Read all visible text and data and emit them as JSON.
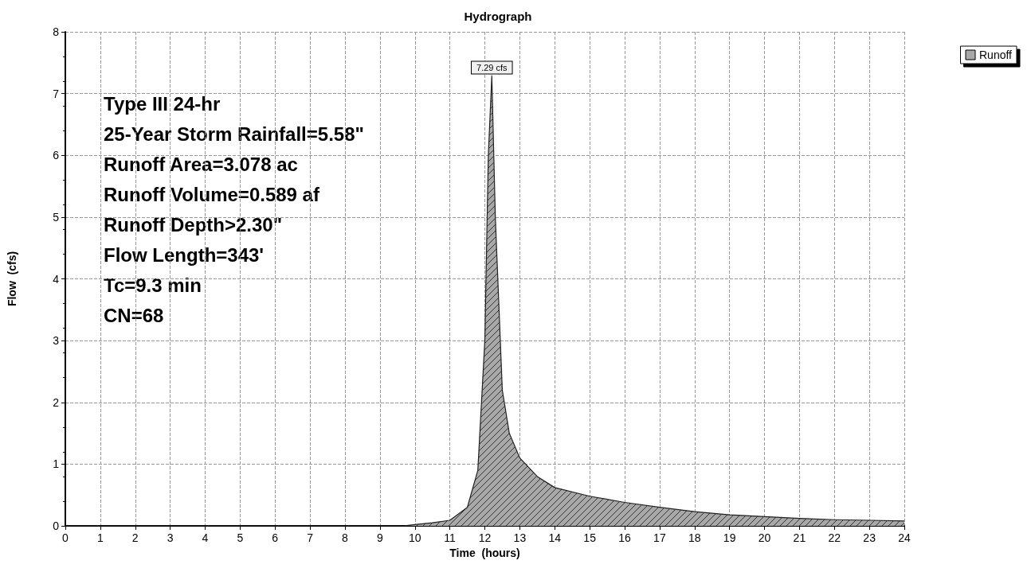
{
  "chart_data": {
    "type": "area",
    "title": "Hydrograph",
    "xlabel": "Time  (hours)",
    "ylabel": "Flow  (cfs)",
    "series": [
      {
        "name": "Runoff",
        "color": "#a8a8a8",
        "x": [
          0,
          9.7,
          10,
          10.5,
          11,
          11.5,
          11.8,
          12,
          12.1,
          12.2,
          12.3,
          12.5,
          12.7,
          13,
          13.5,
          14,
          15,
          16,
          17,
          18,
          19,
          20,
          21,
          22,
          23,
          24
        ],
        "values": [
          0,
          0,
          0.02,
          0.05,
          0.09,
          0.3,
          0.9,
          3.0,
          6.0,
          7.29,
          5.0,
          2.2,
          1.5,
          1.1,
          0.8,
          0.62,
          0.48,
          0.38,
          0.3,
          0.23,
          0.18,
          0.15,
          0.12,
          0.1,
          0.09,
          0.08
        ]
      }
    ],
    "xlim": [
      0,
      24
    ],
    "xticks": [
      0,
      1,
      2,
      3,
      4,
      5,
      6,
      7,
      8,
      9,
      10,
      11,
      12,
      13,
      14,
      15,
      16,
      17,
      18,
      19,
      20,
      21,
      22,
      23,
      24
    ],
    "ylim": [
      0,
      8
    ],
    "yticks": [
      0,
      1,
      2,
      3,
      4,
      5,
      6,
      7,
      8
    ],
    "annotations": [
      {
        "text": "7.29 cfs",
        "x": 12.2,
        "y": 7.29
      },
      "Type III 24-hr",
      "25-Year Storm Rainfall=5.58\"",
      "Runoff Area=3.078 ac",
      "Runoff Volume=0.589 af",
      "Runoff Depth>2.30\"",
      "Flow Length=343'",
      "Tc=9.3 min",
      "CN=68"
    ],
    "grid": true,
    "legend": "top right",
    "marker": "none"
  }
}
